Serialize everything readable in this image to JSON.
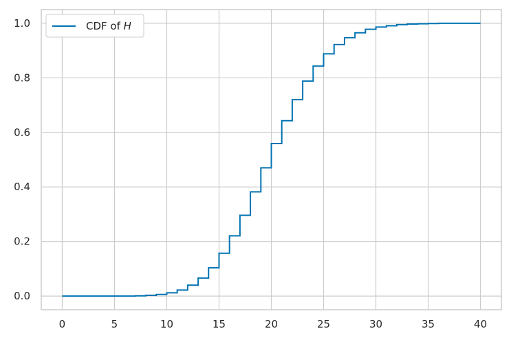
{
  "chart_data": {
    "type": "line",
    "step": "post",
    "xlim": [
      -2,
      42
    ],
    "ylim": [
      -0.05,
      1.05
    ],
    "x_ticks": [
      0,
      5,
      10,
      15,
      20,
      25,
      30,
      35,
      40
    ],
    "y_ticks": [
      0.0,
      0.2,
      0.4,
      0.6,
      0.8,
      1.0
    ],
    "x_tick_labels": [
      "0",
      "5",
      "10",
      "15",
      "20",
      "25",
      "30",
      "35",
      "40"
    ],
    "y_tick_labels": [
      "0.0",
      "0.2",
      "0.4",
      "0.6",
      "0.8",
      "1.0"
    ],
    "grid": true,
    "legend_position": "top-left",
    "series": [
      {
        "name_prefix": "CDF of ",
        "name_var": "H",
        "color": "#0173b2",
        "x": [
          0,
          1,
          2,
          3,
          4,
          5,
          6,
          7,
          8,
          9,
          10,
          11,
          12,
          13,
          14,
          15,
          16,
          17,
          18,
          19,
          20,
          21,
          22,
          23,
          24,
          25,
          26,
          27,
          28,
          29,
          30,
          31,
          32,
          33,
          34,
          35,
          36,
          37,
          38,
          39,
          40
        ],
        "y": [
          0.0,
          0.0,
          0.0,
          0.0,
          0.0,
          0.0,
          0.0,
          0.001,
          0.003,
          0.006,
          0.012,
          0.022,
          0.04,
          0.066,
          0.104,
          0.157,
          0.221,
          0.296,
          0.382,
          0.47,
          0.559,
          0.643,
          0.72,
          0.788,
          0.843,
          0.888,
          0.922,
          0.947,
          0.965,
          0.978,
          0.986,
          0.991,
          0.995,
          0.997,
          0.998,
          0.999,
          1.0,
          1.0,
          1.0,
          1.0,
          1.0
        ]
      }
    ]
  }
}
